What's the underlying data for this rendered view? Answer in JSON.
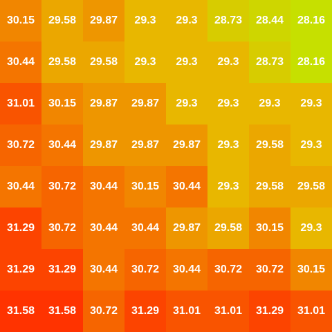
{
  "chart_data": {
    "type": "heatmap",
    "rows": 8,
    "cols": 8,
    "values": [
      [
        30.15,
        29.58,
        29.87,
        29.3,
        29.3,
        28.73,
        28.44,
        28.16
      ],
      [
        30.44,
        29.58,
        29.58,
        29.3,
        29.3,
        29.3,
        28.73,
        28.16
      ],
      [
        31.01,
        30.15,
        29.87,
        29.87,
        29.3,
        29.3,
        29.3,
        29.3
      ],
      [
        30.72,
        30.44,
        29.87,
        29.87,
        29.87,
        29.3,
        29.58,
        29.3
      ],
      [
        30.44,
        30.72,
        30.44,
        30.15,
        30.44,
        29.3,
        29.58,
        29.58
      ],
      [
        31.29,
        30.72,
        30.44,
        30.44,
        29.87,
        29.58,
        30.15,
        29.3
      ],
      [
        31.29,
        31.29,
        30.44,
        30.72,
        30.44,
        30.72,
        30.72,
        30.15
      ],
      [
        31.58,
        31.58,
        30.72,
        31.29,
        31.01,
        31.01,
        31.29,
        31.01
      ]
    ],
    "color_scale": {
      "min_value": 28.16,
      "max_value": 31.58,
      "min_color": "#c6e000",
      "mid_color": "#e8b800",
      "max_color": "#ff3300"
    },
    "title": "",
    "xlabel": "",
    "ylabel": ""
  }
}
